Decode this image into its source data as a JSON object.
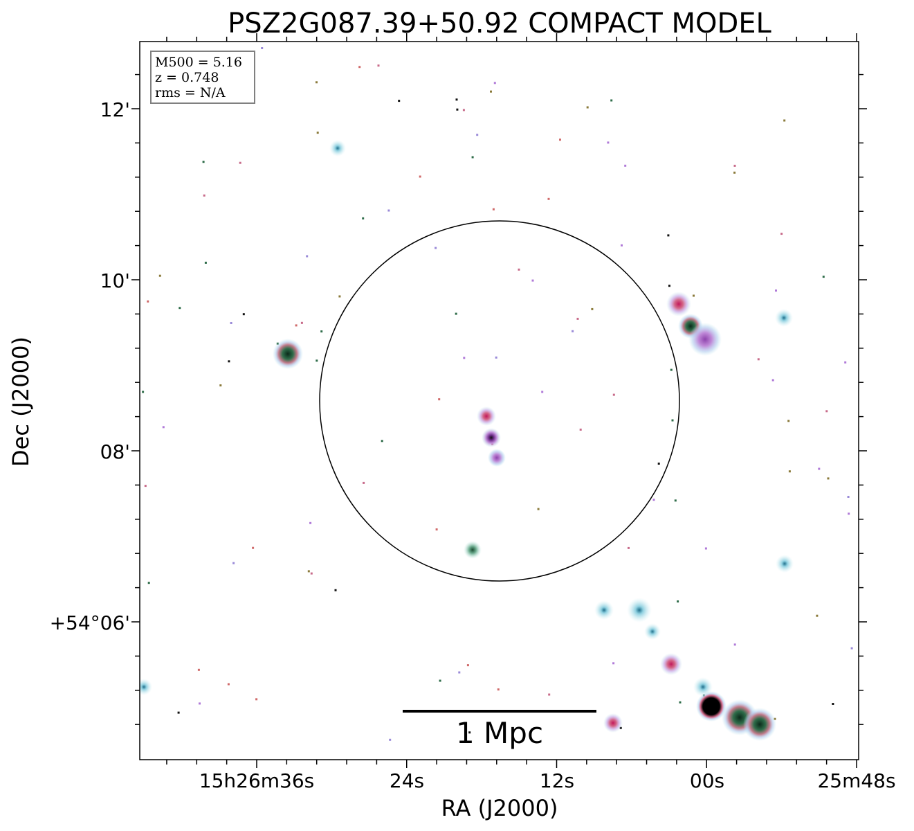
{
  "chart_data": {
    "type": "image",
    "title": "PSZ2G087.39+50.92 COMPACT MODEL",
    "xlabel": "RA (J2000)",
    "ylabel": "Dec (J2000)",
    "x_ticks": [
      "15h26m36s",
      "24s",
      "12s",
      "00s",
      "25m48s"
    ],
    "y_ticks": [
      "12'",
      "10'",
      "08'",
      "+54°06'"
    ],
    "info_box": [
      "M500 = 5.16",
      "z = 0.748",
      "rms = N/A"
    ],
    "scale_bar_label": "1 Mpc",
    "circle": "R500 aperture",
    "sources": [
      {
        "name": "src-1",
        "kind": "green-dark"
      },
      {
        "name": "src-2",
        "kind": "pink"
      },
      {
        "name": "src-3",
        "kind": "purple-dark"
      },
      {
        "name": "src-4",
        "kind": "purple"
      },
      {
        "name": "src-5",
        "kind": "green"
      },
      {
        "name": "src-6",
        "kind": "pink"
      },
      {
        "name": "src-7",
        "kind": "green-dark"
      },
      {
        "name": "src-8",
        "kind": "purple"
      },
      {
        "name": "src-9",
        "kind": "cyan"
      },
      {
        "name": "src-10",
        "kind": "cyan"
      },
      {
        "name": "src-11",
        "kind": "cyan"
      },
      {
        "name": "src-12",
        "kind": "cyan"
      },
      {
        "name": "src-13",
        "kind": "cyan"
      },
      {
        "name": "src-14",
        "kind": "pink"
      },
      {
        "name": "src-15",
        "kind": "black"
      },
      {
        "name": "src-16",
        "kind": "green-dark"
      },
      {
        "name": "src-17",
        "kind": "green-dark"
      },
      {
        "name": "src-18",
        "kind": "cyan"
      },
      {
        "name": "src-19",
        "kind": "pink"
      },
      {
        "name": "src-20",
        "kind": "cyan"
      },
      {
        "name": "src-21",
        "kind": "cyan"
      },
      {
        "name": "src-22",
        "kind": "cyan"
      }
    ],
    "colors": {
      "pink": "#d46a8a",
      "purple": "#b07ad8",
      "green": "#2f6d4a",
      "cyan": "#a9dde6",
      "frame": "#000000"
    }
  }
}
